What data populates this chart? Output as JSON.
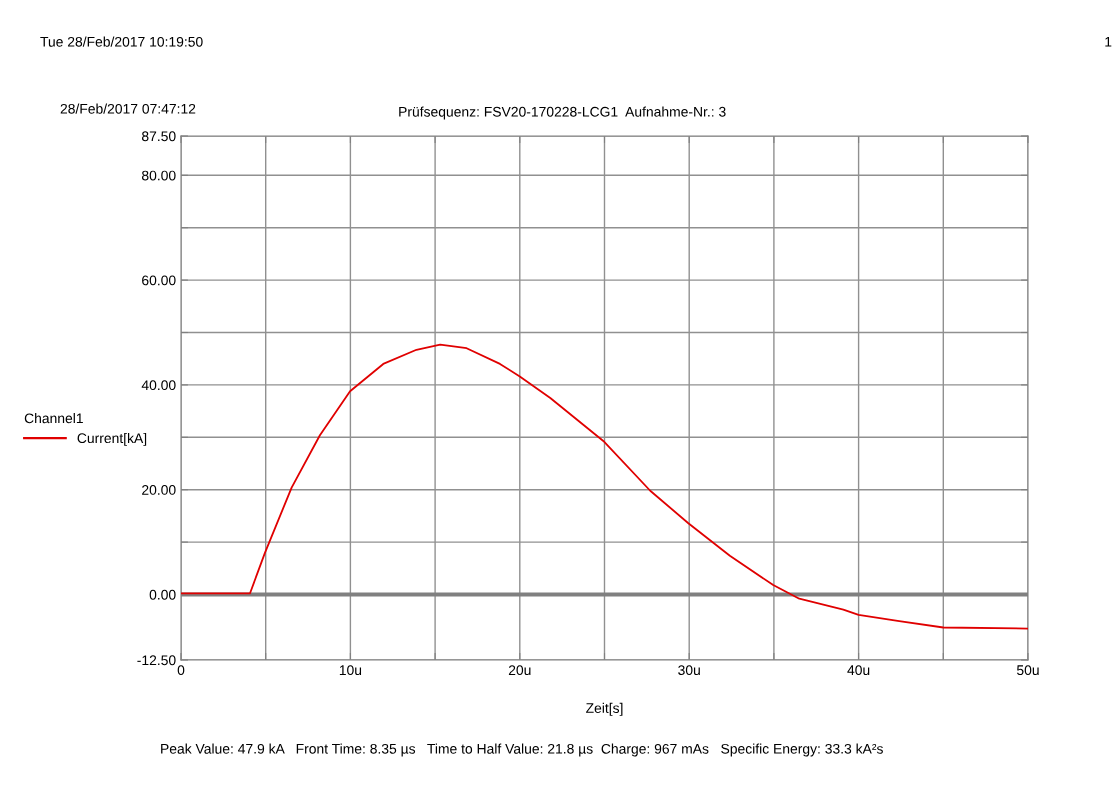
{
  "chart_data": {
    "type": "line",
    "title": "Prüfsequenz: FSV20-170228-LCG1  Aufnahme-Nr.: 3",
    "xlabel": "Zeit[s]",
    "legend_title": "Channel1",
    "annotations": [
      "Tue 28/Feb/2017 10:19:50",
      "1",
      "28/Feb/2017 07:47:12",
      "Peak Value: 47.9 kA   Front Time: 8.35 µs   Time to Half Value: 21.8 µs  Charge: 967 mAs   Specific Energy: 33.3 kA²s"
    ],
    "series": [
      {
        "name": "Current[kA]",
        "color": "#e00000",
        "x": [
          0,
          1,
          2,
          3,
          4.07,
          4.96,
          6.53,
          8.2,
          9.98,
          11.94,
          13.9,
          15.3,
          16.86,
          18.83,
          20.0,
          21.8,
          24.93,
          27.7,
          29.95,
          32.4,
          34.96,
          36.5,
          39.1,
          40,
          42.4,
          45,
          50
        ],
        "values": [
          0.2,
          0.2,
          0.2,
          0.2,
          0.2,
          8.0,
          20.4,
          30.4,
          38.8,
          44.0,
          46.7,
          47.7,
          47.0,
          44.0,
          41.6,
          37.5,
          29.3,
          19.8,
          13.6,
          7.4,
          1.8,
          -0.8,
          -2.9,
          -3.9,
          -5.1,
          -6.3,
          -6.5
        ]
      }
    ],
    "xlim": [
      0,
      50
    ],
    "xticks": [
      0,
      {
        "value": 5,
        "label": null
      },
      {
        "value": 10,
        "label": "10u"
      },
      {
        "value": 15,
        "label": null
      },
      {
        "value": 20,
        "label": "20u"
      },
      {
        "value": 25,
        "label": null
      },
      {
        "value": 30,
        "label": "30u"
      },
      {
        "value": 35,
        "label": null
      },
      {
        "value": 40,
        "label": "40u"
      },
      {
        "value": 45,
        "label": null
      },
      {
        "value": 50,
        "label": "50u"
      }
    ],
    "ylim": [
      -12.5,
      87.5
    ],
    "yticks": [
      {
        "value": -12.5,
        "label": "-12.50"
      },
      {
        "value": 0,
        "label": "0.00"
      },
      {
        "value": 10,
        "label": null
      },
      {
        "value": 20,
        "label": "20.00"
      },
      {
        "value": 30,
        "label": null
      },
      {
        "value": 40,
        "label": "40.00"
      },
      {
        "value": 50,
        "label": null
      },
      {
        "value": 60,
        "label": "60.00"
      },
      {
        "value": 70,
        "label": null
      },
      {
        "value": 80,
        "label": "80.00"
      },
      {
        "value": 87.5,
        "label": "87.50"
      }
    ],
    "ref_lines": [
      {
        "axis": "y",
        "value": 0,
        "color": "#808080"
      }
    ],
    "grid": true,
    "legend": "left",
    "line_style": "solid"
  }
}
